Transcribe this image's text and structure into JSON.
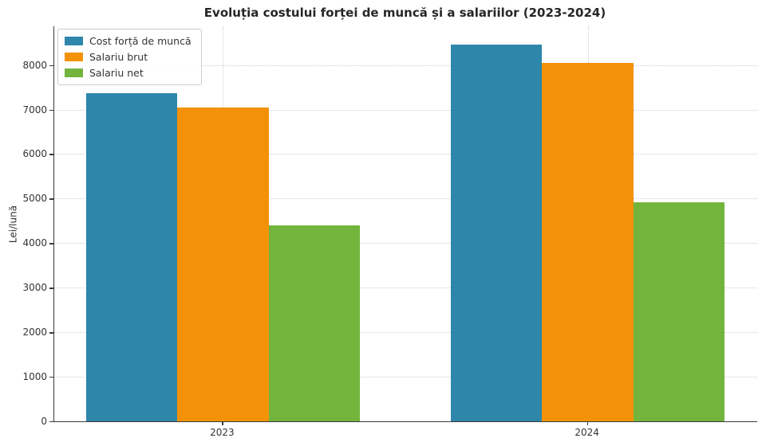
{
  "chart_data": {
    "type": "bar",
    "title": "Evoluția costului forței de muncă și a salariilor (2023-2024)",
    "ylabel": "Lei/lună",
    "xlabel": "",
    "categories": [
      "2023",
      "2024"
    ],
    "series": [
      {
        "name": "Cost forță de muncă",
        "color": "#2E86AB",
        "values": [
          7370,
          8460
        ]
      },
      {
        "name": "Salariu brut",
        "color": "#F39208",
        "values": [
          7040,
          8050
        ]
      },
      {
        "name": "Salariu net",
        "color": "#73B43C",
        "values": [
          4400,
          4920
        ]
      }
    ],
    "ylim": [
      0,
      8870
    ],
    "yticks": [
      0,
      1000,
      2000,
      3000,
      4000,
      5000,
      6000,
      7000,
      8000
    ],
    "grid": true,
    "legend_position": "upper-left"
  },
  "colors": {
    "background": "#FFFFFF",
    "grid": "#CFCFCF",
    "spine": "#3A3A3A",
    "title_text": "#262626",
    "tick_text": "#333333",
    "legend_border": "#CCCCCC",
    "legend_bg": "#FFFFFF"
  }
}
